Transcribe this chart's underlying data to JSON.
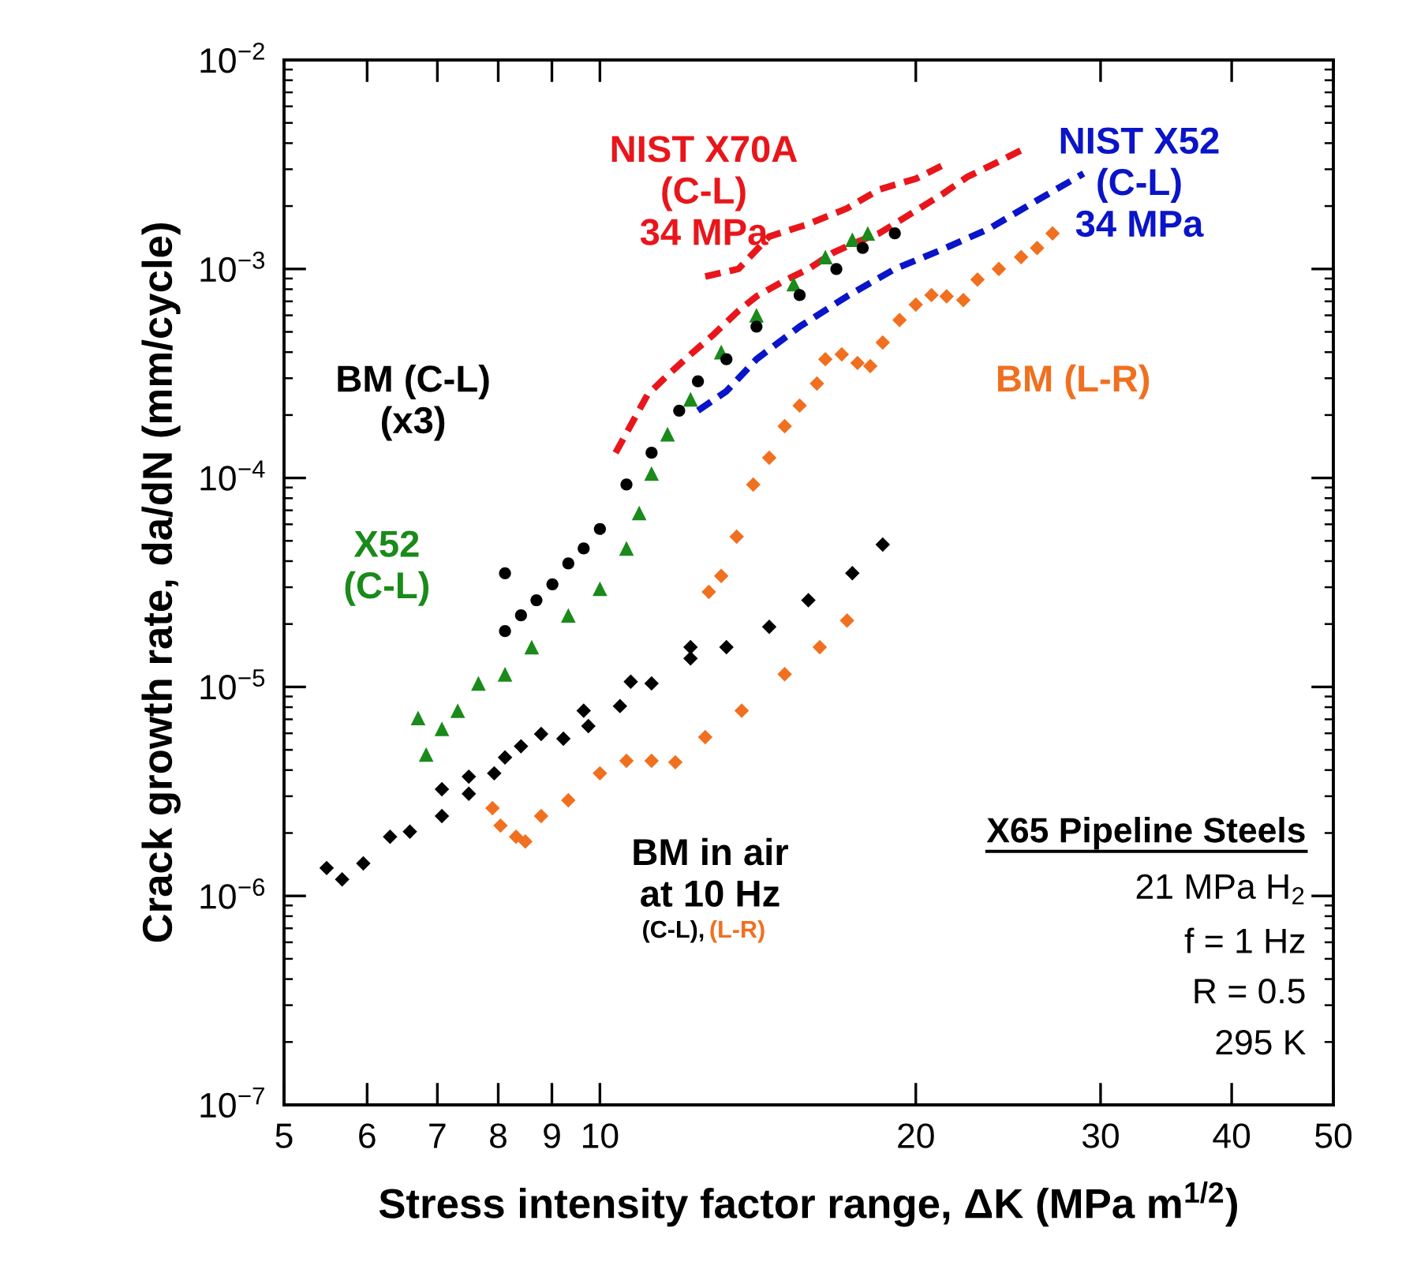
{
  "chart_data": {
    "type": "scatter",
    "xlabel": "Stress intensity factor range, ΔK (MPa m$^{1/2}$)",
    "ylabel": "Crack growth rate, da/dN (mm/cycle)",
    "log": "xy",
    "grid": false,
    "legend": false,
    "xlim": [
      5,
      50
    ],
    "ylim": [
      1e-07,
      0.01
    ],
    "xticks": [
      5,
      6,
      7,
      8,
      9,
      10,
      20,
      30,
      40,
      50
    ],
    "yticks": [
      {
        "value": 1e-07,
        "label": "10$^{−7}$"
      },
      {
        "value": 1e-06,
        "label": "10$^{−6}$"
      },
      {
        "value": 1e-05,
        "label": "10$^{−5}$"
      },
      {
        "value": 0.0001,
        "label": "10$^{−4}$"
      },
      {
        "value": 0.001,
        "label": "10$^{−3}$"
      },
      {
        "value": 0.01,
        "label": "10$^{−2}$"
      }
    ],
    "annotations": [
      "BM in air\nat 10 Hz",
      "X65 Pipeline Steels",
      "21 MPa H$_{2}$",
      "f = 1 Hz",
      "R = 0.5",
      "295 K"
    ],
    "series": [
      {
        "name": "NIST X70A\n(C-L)\n34 MPa",
        "type": "line",
        "line_style": "dashed",
        "color": "#e8161b",
        "x": [
          12.6,
          13.55,
          14.5,
          15.8,
          17.2,
          18.45,
          20.0,
          21.4
        ],
        "values": [
          0.00092,
          0.001,
          0.00143,
          0.00164,
          0.00195,
          0.0024,
          0.0027,
          0.0032
        ]
      },
      {
        "type": "line",
        "line_style": "dashed",
        "color": "#e8161b",
        "x": [
          10.35,
          11.1,
          11.6,
          12.2,
          12.8,
          13.55,
          14.1,
          15.0,
          15.8,
          16.7,
          17.6,
          18.45,
          19.3,
          21.2,
          22.4,
          23.8,
          25.2
        ],
        "values": [
          0.000132,
          0.00025,
          0.00031,
          0.00039,
          0.00048,
          0.00063,
          0.00074,
          0.00088,
          0.001,
          0.0012,
          0.00135,
          0.00148,
          0.0017,
          0.00228,
          0.00276,
          0.0032,
          0.0037
        ]
      },
      {
        "name": "NIST X52\n(C-L)\n34 MPa",
        "type": "line",
        "line_style": "dashed",
        "color": "#0a14c8",
        "x": [
          12.4,
          13.2,
          14.1,
          15.5,
          17.2,
          19.1,
          21.2,
          23.5,
          26.1,
          28.9
        ],
        "values": [
          0.00021,
          0.00026,
          0.00037,
          0.00053,
          0.00074,
          0.001,
          0.00124,
          0.00156,
          0.00213,
          0.00286
        ]
      },
      {
        "name": "X52\n(C-L)",
        "marker": "triangle",
        "color": "#1a8a1a",
        "x": [
          6.71,
          6.83,
          7.07,
          7.32,
          7.66,
          8.12,
          8.61,
          9.33,
          10.0,
          10.6,
          10.9,
          11.2,
          11.6,
          12.2,
          13.05,
          14.1,
          15.3,
          16.4,
          17.4,
          18.0
        ],
        "values": [
          7.1e-06,
          4.75e-06,
          6.3e-06,
          7.7e-06,
          1.04e-05,
          1.15e-05,
          1.55e-05,
          2.2e-05,
          2.95e-05,
          4.6e-05,
          6.8e-05,
          0.000105,
          0.000162,
          0.000238,
          0.0004,
          0.0006,
          0.000846,
          0.00114,
          0.00138,
          0.00148
        ]
      },
      {
        "name": "BM (C-L)\n(x3)",
        "marker": "circle",
        "color": "#000000",
        "x": [
          8.12,
          8.12,
          8.41,
          8.7,
          9.01,
          9.33,
          9.65,
          10.0,
          10.6,
          11.2,
          11.9,
          12.4,
          13.2,
          14.1,
          15.5,
          16.8,
          17.8,
          19.1
        ],
        "values": [
          3.5e-05,
          1.85e-05,
          2.2e-05,
          2.6e-05,
          3.1e-05,
          3.9e-05,
          4.6e-05,
          5.7e-05,
          9.3e-05,
          0.000132,
          0.00021,
          0.00029,
          0.00037,
          0.00053,
          0.00075,
          0.001,
          0.00126,
          0.00148
        ]
      },
      {
        "name": "BM (L-R)",
        "marker": "diamond",
        "color": "#f07020",
        "x": [
          12.7,
          13.05,
          13.5,
          14.0,
          14.5,
          15.0,
          15.5,
          16.1,
          16.4,
          17.0,
          17.6,
          18.1,
          18.6,
          19.3,
          20.0,
          20.7,
          21.4,
          22.2,
          22.9,
          24.0,
          25.2,
          26.1,
          27.0
        ],
        "values": [
          2.85e-05,
          3.4e-05,
          5.24e-05,
          9.3e-05,
          0.000125,
          0.000177,
          0.000222,
          0.000283,
          0.00037,
          0.00039,
          0.000355,
          0.000343,
          0.000445,
          0.00057,
          0.000675,
          0.00075,
          0.00074,
          0.00071,
          0.00089,
          0.001,
          0.00114,
          0.00126,
          0.00148
        ]
      },
      {
        "name": "(C-L),",
        "marker": "diamond",
        "color": "#000000",
        "x": [
          5.49,
          5.68,
          5.95,
          6.31,
          6.59,
          7.07,
          7.5,
          7.93,
          8.41,
          8.79,
          9.23,
          9.75,
          10.45,
          11.2,
          12.2,
          13.2,
          14.5,
          15.8,
          17.4,
          18.6,
          7.07,
          7.5,
          8.12,
          8.79,
          9.65,
          10.7,
          12.2
        ],
        "values": [
          1.36e-06,
          1.2e-06,
          1.43e-06,
          1.92e-06,
          2.03e-06,
          2.41e-06,
          3.08e-06,
          3.86e-06,
          5.2e-06,
          5.96e-06,
          5.65e-06,
          6.5e-06,
          8.1e-06,
          1.04e-05,
          1.37e-05,
          1.55e-05,
          1.94e-05,
          2.6e-05,
          3.5e-05,
          4.8e-05,
          3.24e-06,
          3.72e-06,
          4.6e-06,
          null,
          7.7e-06,
          1.06e-05,
          1.55e-05
        ]
      },
      {
        "name": "(L-R)",
        "marker": "diamond",
        "color": "#f07020",
        "x": [
          7.9,
          8.04,
          8.32,
          8.49,
          8.79,
          9.33,
          10.0,
          10.6,
          11.2,
          11.8,
          12.6,
          13.65,
          15.0,
          16.2,
          17.2
        ],
        "values": [
          2.63e-06,
          2.17e-06,
          1.92e-06,
          1.82e-06,
          2.41e-06,
          2.87e-06,
          3.86e-06,
          4.43e-06,
          4.43e-06,
          4.36e-06,
          5.75e-06,
          7.7e-06,
          1.15e-05,
          1.55e-05,
          2.08e-05
        ]
      }
    ]
  }
}
